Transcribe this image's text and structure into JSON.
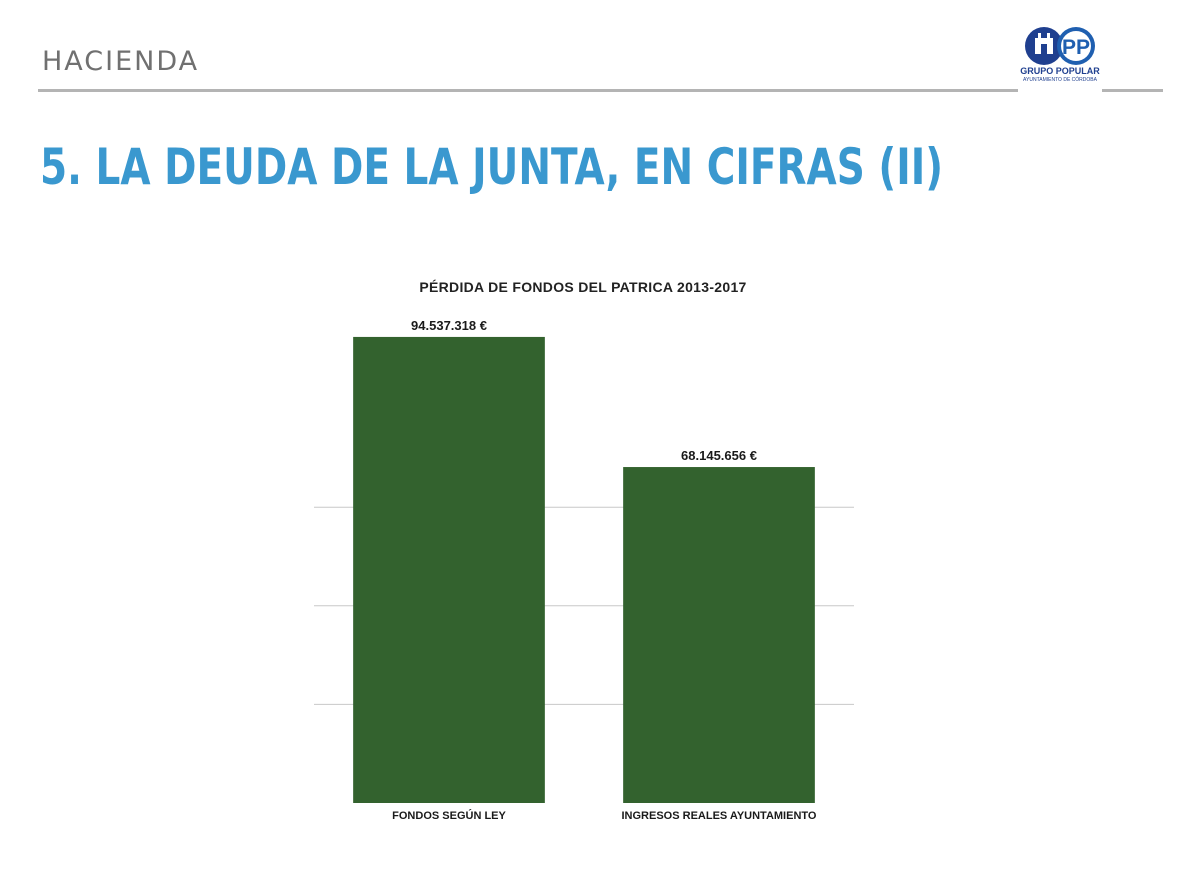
{
  "header": {
    "section": "HACIENDA",
    "title": "5. LA DEUDA DE LA JUNTA, EN CIFRAS (II)"
  },
  "logo": {
    "text": "PP",
    "caption_line1": "GRUPO POPULAR",
    "caption_line2": "AYUNTAMIENTO DE CÓRDOBA",
    "colors": {
      "brand_blue": "#1f5fb0",
      "dark_blue": "#1f3f8f"
    }
  },
  "colors": {
    "title": "#3a98cf",
    "section": "#707070",
    "bar": "#33622e"
  },
  "chart_data": {
    "type": "bar",
    "title": "PÉRDIDA DE FONDOS DEL PATRICA 2013-2017",
    "categories": [
      "FONDOS SEGÚN LEY",
      "INGRESOS REALES AYUNTAMIENTO"
    ],
    "values": [
      94537318,
      68145656
    ],
    "value_labels": [
      "94.537.318 €",
      "68.145.656 €"
    ],
    "xlabel": "",
    "ylabel": "",
    "ylim": [
      0,
      100000000
    ],
    "gridlines": [
      20000000,
      40000000,
      60000000
    ],
    "grid": true,
    "legend": "none"
  }
}
